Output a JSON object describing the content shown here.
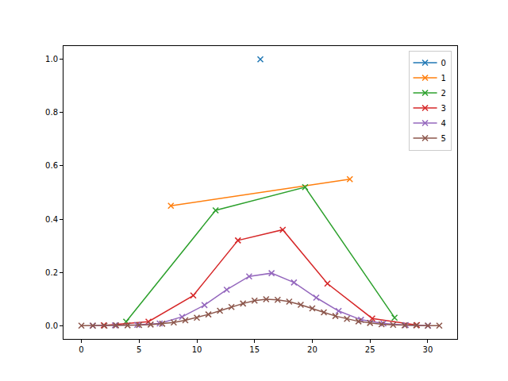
{
  "chart_data": {
    "type": "line",
    "marker": "x",
    "line_style": "solid",
    "legend": "upper right",
    "grid": false,
    "xlim": [
      -1.55,
      32.55
    ],
    "ylim": [
      -0.05,
      1.05
    ],
    "xticks": [
      0,
      5,
      10,
      15,
      20,
      25,
      30
    ],
    "yticks": [
      {
        "value": 0,
        "label": "0.0"
      },
      0.2,
      0.4,
      0.6,
      0.8,
      {
        "value": 1,
        "label": "1.0"
      }
    ],
    "series": [
      {
        "name": "0",
        "color": "#1f77b4",
        "x": [
          15.5
        ],
        "values": [
          1.0
        ]
      },
      {
        "name": "1",
        "color": "#ff7f0e",
        "x": [
          7.75,
          23.25
        ],
        "values": [
          0.45,
          0.55
        ]
      },
      {
        "name": "2",
        "color": "#2ca02c",
        "x": [
          3.875,
          11.625,
          19.375,
          27.125
        ],
        "values": [
          0.015,
          0.433,
          0.52,
          0.03
        ]
      },
      {
        "name": "3",
        "color": "#d62728",
        "x": [
          1.94,
          5.81,
          9.69,
          13.56,
          17.44,
          21.31,
          25.19,
          29.06
        ],
        "values": [
          0.001,
          0.015,
          0.113,
          0.32,
          0.36,
          0.158,
          0.027,
          0.002
        ]
      },
      {
        "name": "4",
        "color": "#9467bd",
        "x": [
          0.97,
          2.91,
          4.84,
          6.78,
          8.72,
          10.66,
          12.59,
          14.53,
          16.47,
          18.41,
          20.34,
          22.28,
          24.22,
          26.16,
          28.09,
          30.03
        ],
        "values": [
          0.0,
          0.001,
          0.003,
          0.008,
          0.033,
          0.077,
          0.135,
          0.185,
          0.197,
          0.162,
          0.105,
          0.055,
          0.022,
          0.008,
          0.002,
          0.0
        ]
      },
      {
        "name": "5",
        "color": "#8c564b",
        "x": [
          0,
          1,
          2,
          3,
          4,
          5,
          6,
          7,
          8,
          9,
          10,
          11,
          12,
          13,
          14,
          15,
          16,
          17,
          18,
          19,
          20,
          21,
          22,
          23,
          24,
          25,
          26,
          27,
          28,
          29,
          30,
          31
        ],
        "values": [
          0.0,
          0.0,
          0.0,
          0.001,
          0.001,
          0.002,
          0.004,
          0.007,
          0.012,
          0.02,
          0.03,
          0.042,
          0.056,
          0.07,
          0.083,
          0.094,
          0.099,
          0.097,
          0.09,
          0.078,
          0.065,
          0.05,
          0.036,
          0.025,
          0.016,
          0.01,
          0.005,
          0.003,
          0.001,
          0.001,
          0.0,
          0.0
        ]
      }
    ]
  }
}
